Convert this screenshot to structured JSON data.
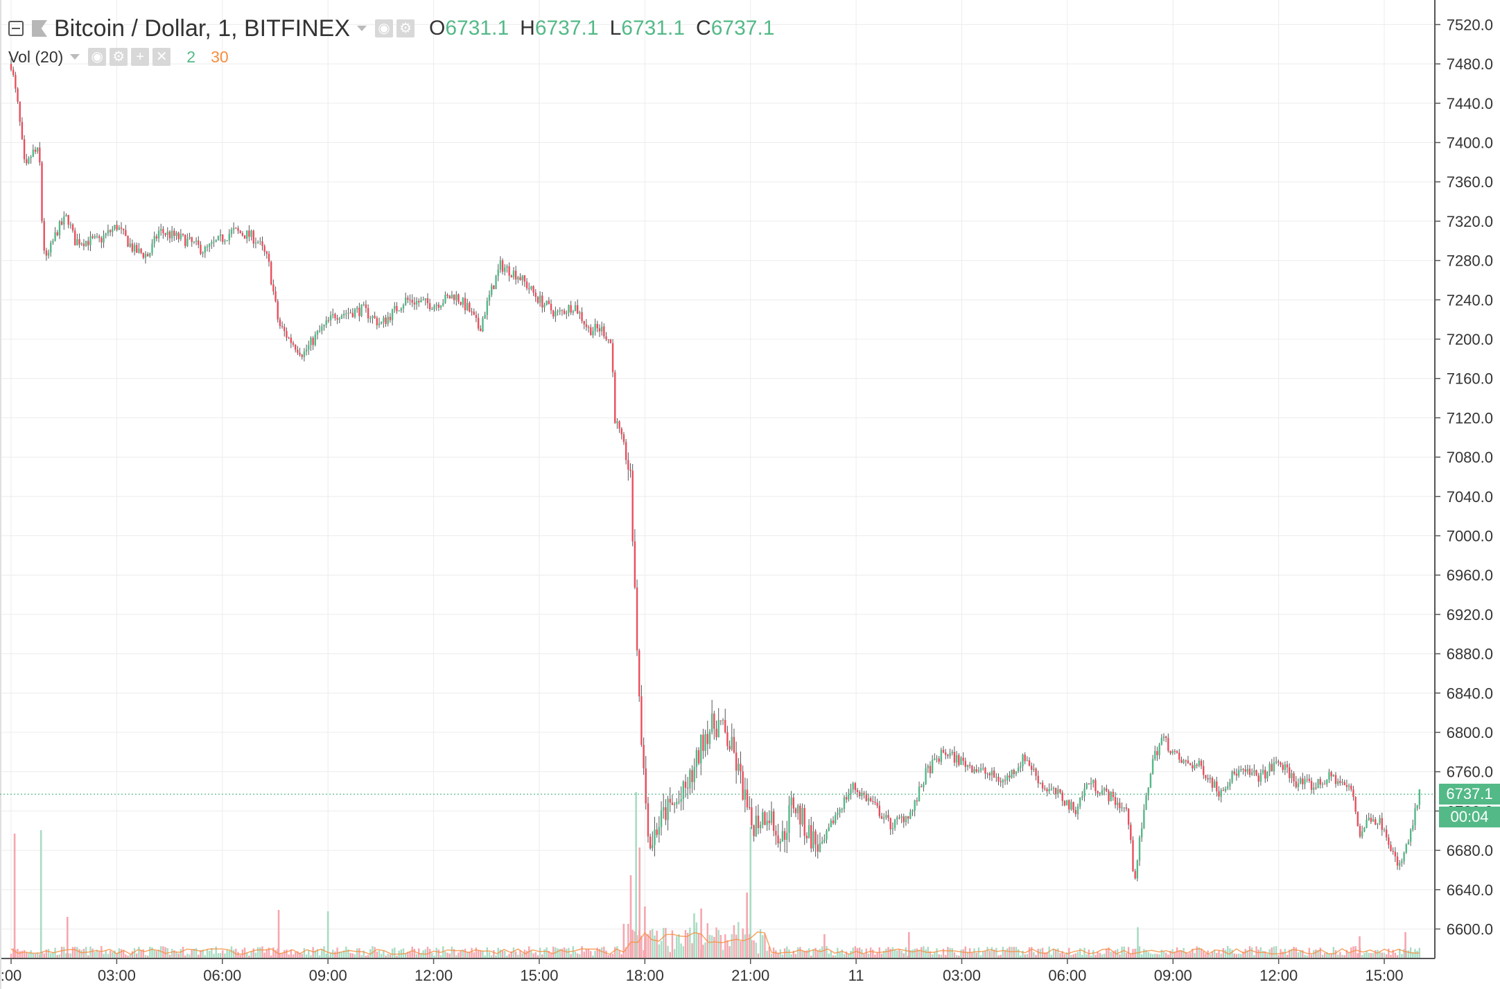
{
  "header": {
    "symbol_title": "Bitcoin / Dollar, 1, BITFINEX",
    "ohlc": [
      {
        "key": "O",
        "value": "6731.1"
      },
      {
        "key": "H",
        "value": "6737.1"
      },
      {
        "key": "L",
        "value": "6731.1"
      },
      {
        "key": "C",
        "value": "6737.1"
      }
    ]
  },
  "volume_legend": {
    "title": "Vol (20)",
    "value_a": "2",
    "value_b": "30"
  },
  "price_label": {
    "price": "6737.1",
    "countdown": "00:04"
  },
  "colors": {
    "up": "#53b987",
    "down": "#eb4d5c",
    "up_volume": "#a9dcc3",
    "down_volume": "#f5a6ae",
    "volume_ma": "#f68e3e",
    "grid": "#ececec",
    "axis_text": "#333333"
  },
  "icons": [
    "collapse-icon",
    "flag-icon",
    "caret-down-icon",
    "eye-icon",
    "gear-icon",
    "plus-icon",
    "close-icon"
  ],
  "chart_data": {
    "type": "candlestick",
    "interval": "1 minute",
    "ylim": [
      6570,
      7545
    ],
    "y_ticks": [
      6600,
      6640,
      6680,
      6720,
      6760,
      6800,
      6840,
      6880,
      6920,
      6960,
      7000,
      7040,
      7080,
      7120,
      7160,
      7200,
      7240,
      7280,
      7320,
      7360,
      7400,
      7440,
      7480,
      7520
    ],
    "y_tick_labels": [
      "6600.0",
      "6640.0",
      "6680.0",
      "6720.0",
      "6760.0",
      "6800.0",
      "6840.0",
      "6880.0",
      "6920.0",
      "6960.0",
      "7000.0",
      "7040.0",
      "7080.0",
      "7120.0",
      "7160.0",
      "7200.0",
      "7240.0",
      "7280.0",
      "7320.0",
      "7360.0",
      "7400.0",
      "7440.0",
      "7480.0",
      "7520.0"
    ],
    "x_tick_labels": [
      ":00",
      "03:00",
      "06:00",
      "09:00",
      "12:00",
      "15:00",
      "18:00",
      "21:00",
      "11",
      "03:00",
      "06:00",
      "09:00",
      "12:00",
      "15:00"
    ],
    "x_range_hours": [
      0,
      40.2
    ],
    "x_tick_hours": [
      0,
      3,
      6,
      9,
      12,
      15,
      18,
      21,
      24,
      27,
      30,
      33,
      36,
      39
    ],
    "price_path": [
      {
        "t": 0.0,
        "p": 7480
      },
      {
        "t": 0.2,
        "p": 7435
      },
      {
        "t": 0.4,
        "p": 7370
      },
      {
        "t": 0.6,
        "p": 7390
      },
      {
        "t": 0.8,
        "p": 7390
      },
      {
        "t": 0.9,
        "p": 7300
      },
      {
        "t": 1.0,
        "p": 7280
      },
      {
        "t": 1.3,
        "p": 7310
      },
      {
        "t": 1.6,
        "p": 7325
      },
      {
        "t": 1.8,
        "p": 7300
      },
      {
        "t": 2.5,
        "p": 7300
      },
      {
        "t": 3.0,
        "p": 7315
      },
      {
        "t": 3.5,
        "p": 7290
      },
      {
        "t": 3.9,
        "p": 7285
      },
      {
        "t": 4.2,
        "p": 7310
      },
      {
        "t": 5.0,
        "p": 7300
      },
      {
        "t": 5.5,
        "p": 7290
      },
      {
        "t": 6.3,
        "p": 7310
      },
      {
        "t": 6.8,
        "p": 7305
      },
      {
        "t": 7.0,
        "p": 7300
      },
      {
        "t": 7.3,
        "p": 7280
      },
      {
        "t": 7.6,
        "p": 7215
      },
      {
        "t": 7.9,
        "p": 7200
      },
      {
        "t": 8.3,
        "p": 7185
      },
      {
        "t": 8.7,
        "p": 7205
      },
      {
        "t": 9.2,
        "p": 7225
      },
      {
        "t": 10.0,
        "p": 7230
      },
      {
        "t": 10.5,
        "p": 7215
      },
      {
        "t": 11.2,
        "p": 7240
      },
      {
        "t": 12.0,
        "p": 7235
      },
      {
        "t": 12.6,
        "p": 7245
      },
      {
        "t": 13.0,
        "p": 7230
      },
      {
        "t": 13.3,
        "p": 7210
      },
      {
        "t": 13.6,
        "p": 7245
      },
      {
        "t": 13.9,
        "p": 7275
      },
      {
        "t": 14.4,
        "p": 7265
      },
      {
        "t": 15.0,
        "p": 7240
      },
      {
        "t": 15.5,
        "p": 7225
      },
      {
        "t": 16.0,
        "p": 7235
      },
      {
        "t": 16.4,
        "p": 7210
      },
      {
        "t": 16.8,
        "p": 7210
      },
      {
        "t": 17.05,
        "p": 7195
      },
      {
        "t": 17.15,
        "p": 7120
      },
      {
        "t": 17.4,
        "p": 7090
      },
      {
        "t": 17.6,
        "p": 7060
      },
      {
        "t": 17.7,
        "p": 6960
      },
      {
        "t": 17.8,
        "p": 6870
      },
      {
        "t": 17.9,
        "p": 6800
      },
      {
        "t": 18.0,
        "p": 6740
      },
      {
        "t": 18.15,
        "p": 6685
      },
      {
        "t": 18.3,
        "p": 6700
      },
      {
        "t": 18.6,
        "p": 6720
      },
      {
        "t": 19.0,
        "p": 6730
      },
      {
        "t": 19.4,
        "p": 6760
      },
      {
        "t": 19.7,
        "p": 6800
      },
      {
        "t": 20.1,
        "p": 6810
      },
      {
        "t": 20.5,
        "p": 6780
      },
      {
        "t": 20.8,
        "p": 6740
      },
      {
        "t": 21.0,
        "p": 6705
      },
      {
        "t": 21.5,
        "p": 6720
      },
      {
        "t": 21.9,
        "p": 6690
      },
      {
        "t": 22.2,
        "p": 6730
      },
      {
        "t": 22.6,
        "p": 6700
      },
      {
        "t": 23.0,
        "p": 6680
      },
      {
        "t": 23.4,
        "p": 6715
      },
      {
        "t": 23.9,
        "p": 6745
      },
      {
        "t": 24.4,
        "p": 6730
      },
      {
        "t": 25.0,
        "p": 6705
      },
      {
        "t": 25.6,
        "p": 6720
      },
      {
        "t": 26.0,
        "p": 6760
      },
      {
        "t": 26.5,
        "p": 6780
      },
      {
        "t": 27.0,
        "p": 6770
      },
      {
        "t": 27.6,
        "p": 6760
      },
      {
        "t": 28.2,
        "p": 6750
      },
      {
        "t": 28.8,
        "p": 6775
      },
      {
        "t": 29.3,
        "p": 6745
      },
      {
        "t": 29.8,
        "p": 6735
      },
      {
        "t": 30.2,
        "p": 6720
      },
      {
        "t": 30.6,
        "p": 6750
      },
      {
        "t": 31.2,
        "p": 6735
      },
      {
        "t": 31.7,
        "p": 6720
      },
      {
        "t": 31.9,
        "p": 6650
      },
      {
        "t": 32.1,
        "p": 6700
      },
      {
        "t": 32.4,
        "p": 6770
      },
      {
        "t": 32.7,
        "p": 6795
      },
      {
        "t": 33.2,
        "p": 6770
      },
      {
        "t": 33.8,
        "p": 6765
      },
      {
        "t": 34.3,
        "p": 6740
      },
      {
        "t": 34.8,
        "p": 6760
      },
      {
        "t": 35.5,
        "p": 6755
      },
      {
        "t": 36.0,
        "p": 6770
      },
      {
        "t": 36.5,
        "p": 6750
      },
      {
        "t": 37.0,
        "p": 6745
      },
      {
        "t": 37.5,
        "p": 6755
      },
      {
        "t": 38.1,
        "p": 6740
      },
      {
        "t": 38.3,
        "p": 6695
      },
      {
        "t": 38.6,
        "p": 6715
      },
      {
        "t": 39.0,
        "p": 6705
      },
      {
        "t": 39.4,
        "p": 6660
      },
      {
        "t": 39.7,
        "p": 6690
      },
      {
        "t": 40.0,
        "p": 6737
      }
    ],
    "volume_spikes": [
      {
        "t": 0.1,
        "v": 180
      },
      {
        "t": 0.85,
        "v": 185
      },
      {
        "t": 1.6,
        "v": 60
      },
      {
        "t": 7.6,
        "v": 70
      },
      {
        "t": 9.0,
        "v": 68
      },
      {
        "t": 17.4,
        "v": 50
      },
      {
        "t": 17.6,
        "v": 120
      },
      {
        "t": 17.75,
        "v": 240
      },
      {
        "t": 17.85,
        "v": 160
      },
      {
        "t": 18.0,
        "v": 75
      },
      {
        "t": 19.4,
        "v": 65
      },
      {
        "t": 19.6,
        "v": 72
      },
      {
        "t": 20.9,
        "v": 95
      },
      {
        "t": 21.0,
        "v": 190
      },
      {
        "t": 23.1,
        "v": 35
      },
      {
        "t": 25.5,
        "v": 38
      },
      {
        "t": 32.0,
        "v": 45
      },
      {
        "t": 38.3,
        "v": 32
      },
      {
        "t": 39.6,
        "v": 38
      }
    ],
    "last_price": 6737.1
  }
}
